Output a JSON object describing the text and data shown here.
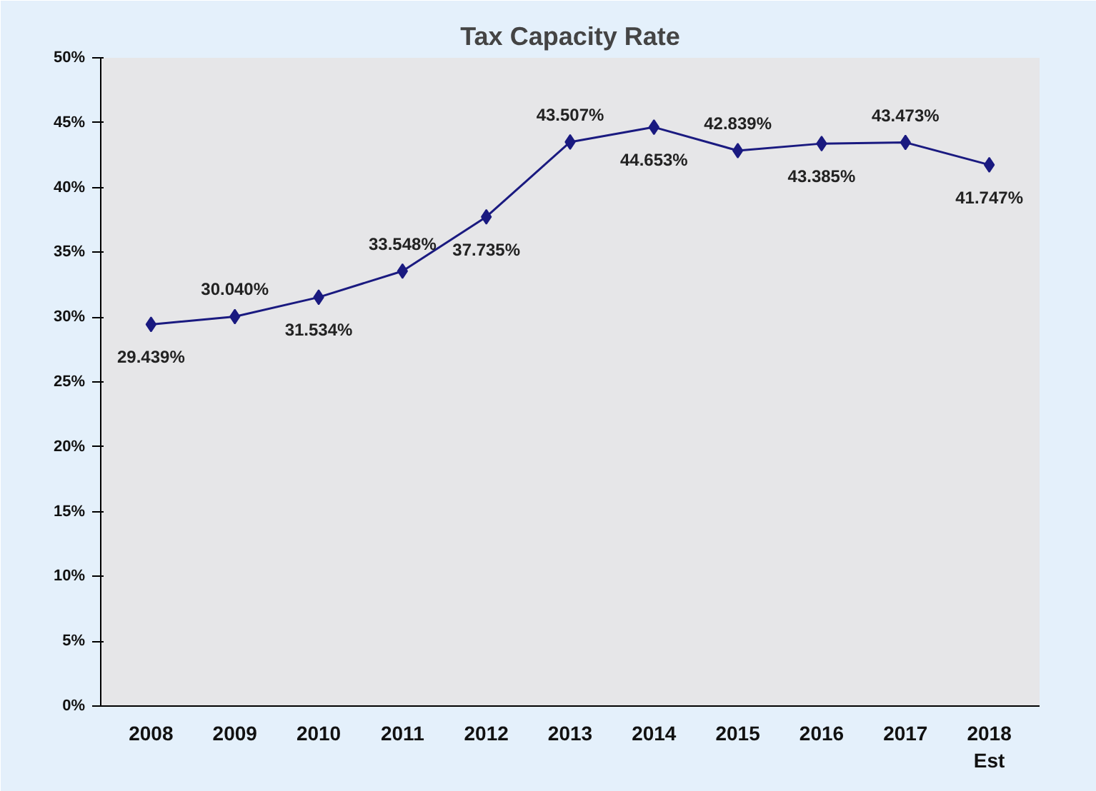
{
  "chart_data": {
    "type": "line",
    "title": "Tax Capacity Rate",
    "categories": [
      "2008",
      "2009",
      "2010",
      "2011",
      "2012",
      "2013",
      "2014",
      "2015",
      "2016",
      "2017",
      "2018\nEst"
    ],
    "series": [
      {
        "color": "#1a1a80",
        "values": [
          29.439,
          30.04,
          31.534,
          33.548,
          37.735,
          43.507,
          44.653,
          42.839,
          43.385,
          43.473,
          41.747
        ],
        "value_labels": [
          "29.439%",
          "30.040%",
          "31.534%",
          "33.548%",
          "37.735%",
          "43.507%",
          "44.653%",
          "42.839%",
          "43.385%",
          "43.473%",
          "41.747%"
        ]
      }
    ],
    "ylim": [
      0,
      50
    ],
    "yticks": [
      {
        "value": 0,
        "label": "0%"
      },
      {
        "value": 5,
        "label": "5%"
      },
      {
        "value": 10,
        "label": "10%"
      },
      {
        "value": 15,
        "label": "15%"
      },
      {
        "value": 20,
        "label": "20%"
      },
      {
        "value": 25,
        "label": "25%"
      },
      {
        "value": 30,
        "label": "30%"
      },
      {
        "value": 35,
        "label": "35%"
      },
      {
        "value": 40,
        "label": "40%"
      },
      {
        "value": 45,
        "label": "45%"
      },
      {
        "value": 50,
        "label": "50%"
      }
    ],
    "marker": "diamond",
    "line_style": "solid"
  }
}
